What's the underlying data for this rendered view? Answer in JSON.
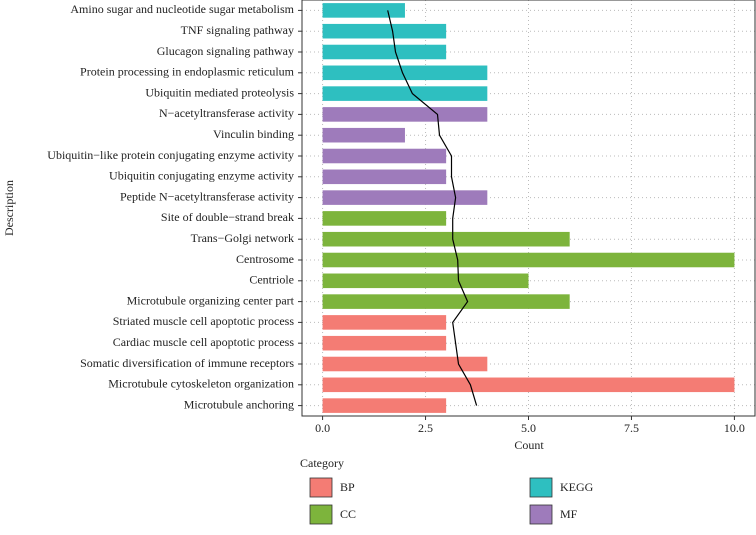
{
  "chart_data": {
    "type": "bar",
    "orientation": "horizontal",
    "categories": [
      "Amino sugar and nucleotide sugar metabolism",
      "TNF signaling pathway",
      "Glucagon signaling pathway",
      "Protein processing in endoplasmic reticulum",
      "Ubiquitin mediated proteolysis",
      "N−acetyltransferase activity",
      "Vinculin binding",
      "Ubiquitin−like protein conjugating enzyme activity",
      "Ubiquitin conjugating enzyme activity",
      "Peptide N−acetyltransferase activity",
      "Site of double−strand break",
      "Trans−Golgi network",
      "Centrosome",
      "Centriole",
      "Microtubule organizing center part",
      "Striated muscle cell apoptotic process",
      "Cardiac muscle cell apoptotic process",
      "Somatic diversification of immune receptors",
      "Microtubule cytoskeleton organization",
      "Microtubule anchoring"
    ],
    "values": [
      2,
      3,
      3,
      4,
      4,
      4,
      2,
      3,
      3,
      4,
      3,
      6,
      10,
      5,
      6,
      3,
      3,
      4,
      10,
      3
    ],
    "groups": [
      "KEGG",
      "KEGG",
      "KEGG",
      "KEGG",
      "KEGG",
      "MF",
      "MF",
      "MF",
      "MF",
      "MF",
      "CC",
      "CC",
      "CC",
      "CC",
      "CC",
      "BP",
      "BP",
      "BP",
      "BP",
      "BP"
    ],
    "line": {
      "color": "#000000",
      "values": [
        1.58,
        1.7,
        1.77,
        1.94,
        2.18,
        2.79,
        2.84,
        3.13,
        3.13,
        3.23,
        3.16,
        3.16,
        3.28,
        3.3,
        3.52,
        3.16,
        3.23,
        3.3,
        3.59,
        3.74
      ]
    },
    "legend_title": "Category",
    "legend": [
      {
        "name": "BP",
        "color": "#f47c74"
      },
      {
        "name": "CC",
        "color": "#7db43c"
      },
      {
        "name": "KEGG",
        "color": "#2ebfc0"
      },
      {
        "name": "MF",
        "color": "#9e7bbb"
      }
    ],
    "x_label": "Count",
    "y_label": "Description",
    "xlim": [
      -0.5,
      10.5
    ],
    "xticks": [
      {
        "value": 0,
        "label": "0.0"
      },
      {
        "value": 2.5,
        "label": "2.5"
      },
      {
        "value": 5,
        "label": "5.0"
      },
      {
        "value": 7.5,
        "label": "7.5"
      },
      {
        "value": 10,
        "label": "10.0"
      }
    ],
    "grid": true
  }
}
